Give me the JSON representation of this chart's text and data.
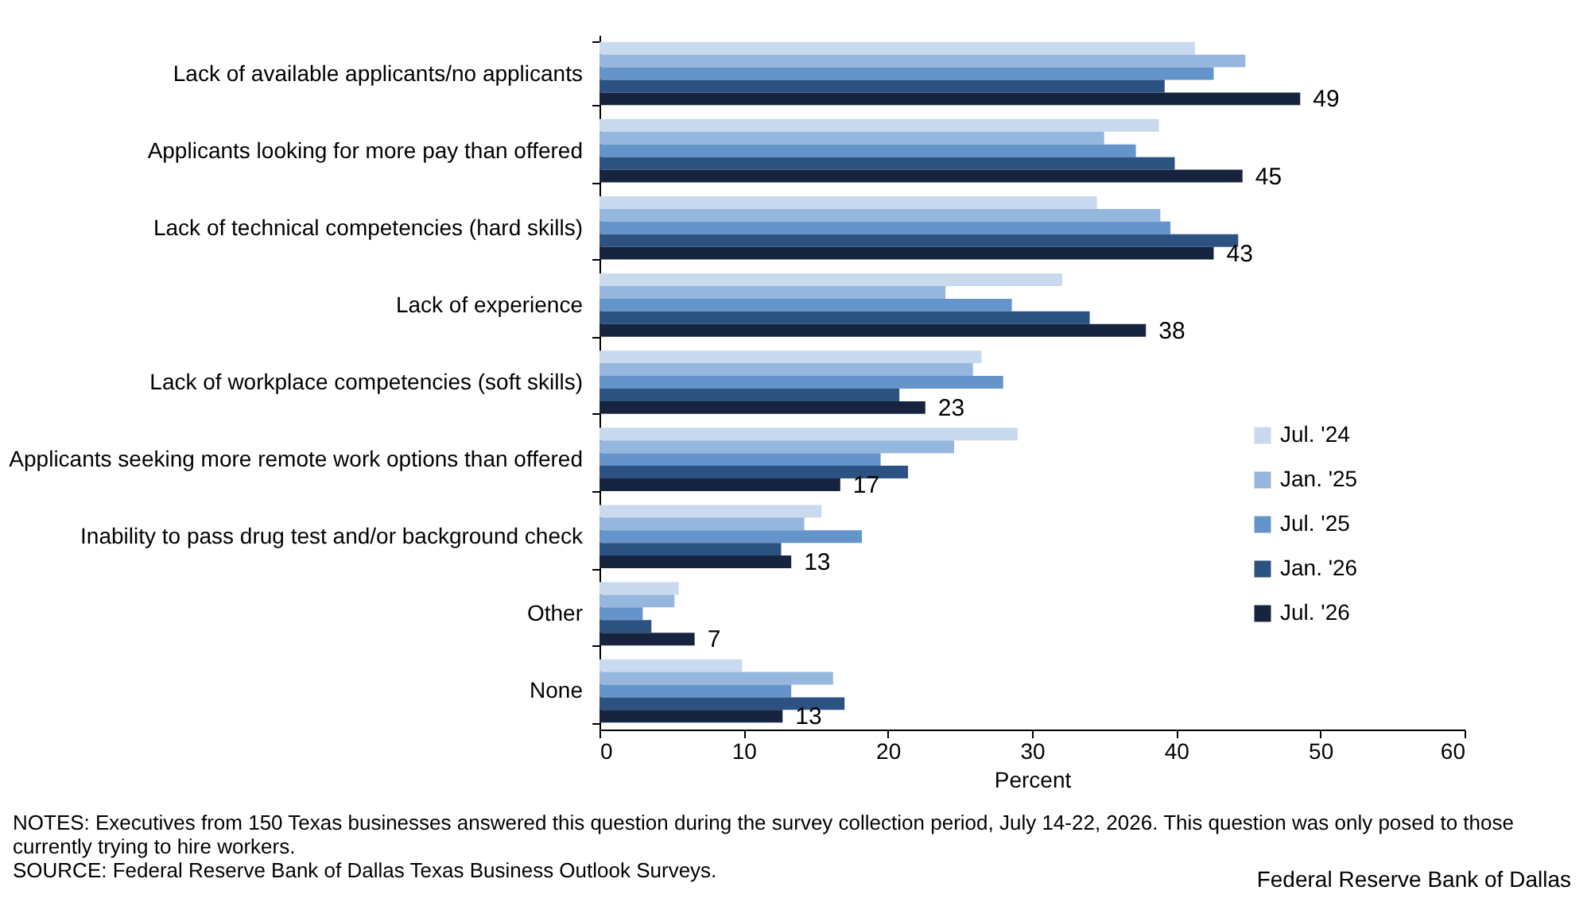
{
  "chart_data": {
    "type": "bar",
    "orientation": "horizontal",
    "xlabel": "Percent",
    "xlim": [
      0,
      60
    ],
    "xticks": [
      0,
      10,
      20,
      30,
      40,
      50,
      60
    ],
    "grid": false,
    "legend": "right",
    "categories": [
      "Lack of available applicants/no applicants",
      "Applicants looking for more pay than offered",
      "Lack of technical competencies (hard skills)",
      "Lack of experience",
      "Lack of workplace competencies (soft skills)",
      "Applicants seeking more remote work options than offered",
      "Inability to pass drug test and/or background check",
      "Other",
      "None"
    ],
    "series": [
      {
        "name": "Jul. '24",
        "color": "#c9d9ee",
        "values": [
          41.3,
          38.8,
          34.5,
          32.1,
          26.5,
          29.0,
          15.4,
          5.5,
          9.9
        ]
      },
      {
        "name": "Jan. '25",
        "color": "#95b6dd",
        "values": [
          44.8,
          35.0,
          38.9,
          24.0,
          25.9,
          24.6,
          14.2,
          5.2,
          16.2
        ]
      },
      {
        "name": "Jul. '25",
        "color": "#6594cb",
        "values": [
          42.6,
          37.2,
          39.6,
          28.6,
          28.0,
          19.5,
          18.2,
          3.0,
          13.3
        ]
      },
      {
        "name": "Jan. '26",
        "color": "#2c5282",
        "values": [
          39.2,
          39.9,
          44.3,
          34.0,
          20.8,
          21.4,
          12.6,
          3.6,
          17.0
        ]
      },
      {
        "name": "Jul. '26",
        "color": "#16243f",
        "values": [
          48.6,
          44.6,
          42.6,
          37.9,
          22.6,
          16.7,
          13.3,
          6.6,
          12.7
        ],
        "value_labels": [
          "49",
          "45",
          "43",
          "38",
          "23",
          "17",
          "13",
          "7",
          "13"
        ]
      }
    ],
    "annotations": [
      "NOTES: Executives from 150 Texas businesses answered this question during the survey collection period, July 14-22, 2026. This question was only posed to those currently trying to hire workers.",
      "SOURCE: Federal Reserve Bank of Dallas Texas Business Outlook Surveys.",
      "Federal Reserve Bank of Dallas"
    ]
  }
}
